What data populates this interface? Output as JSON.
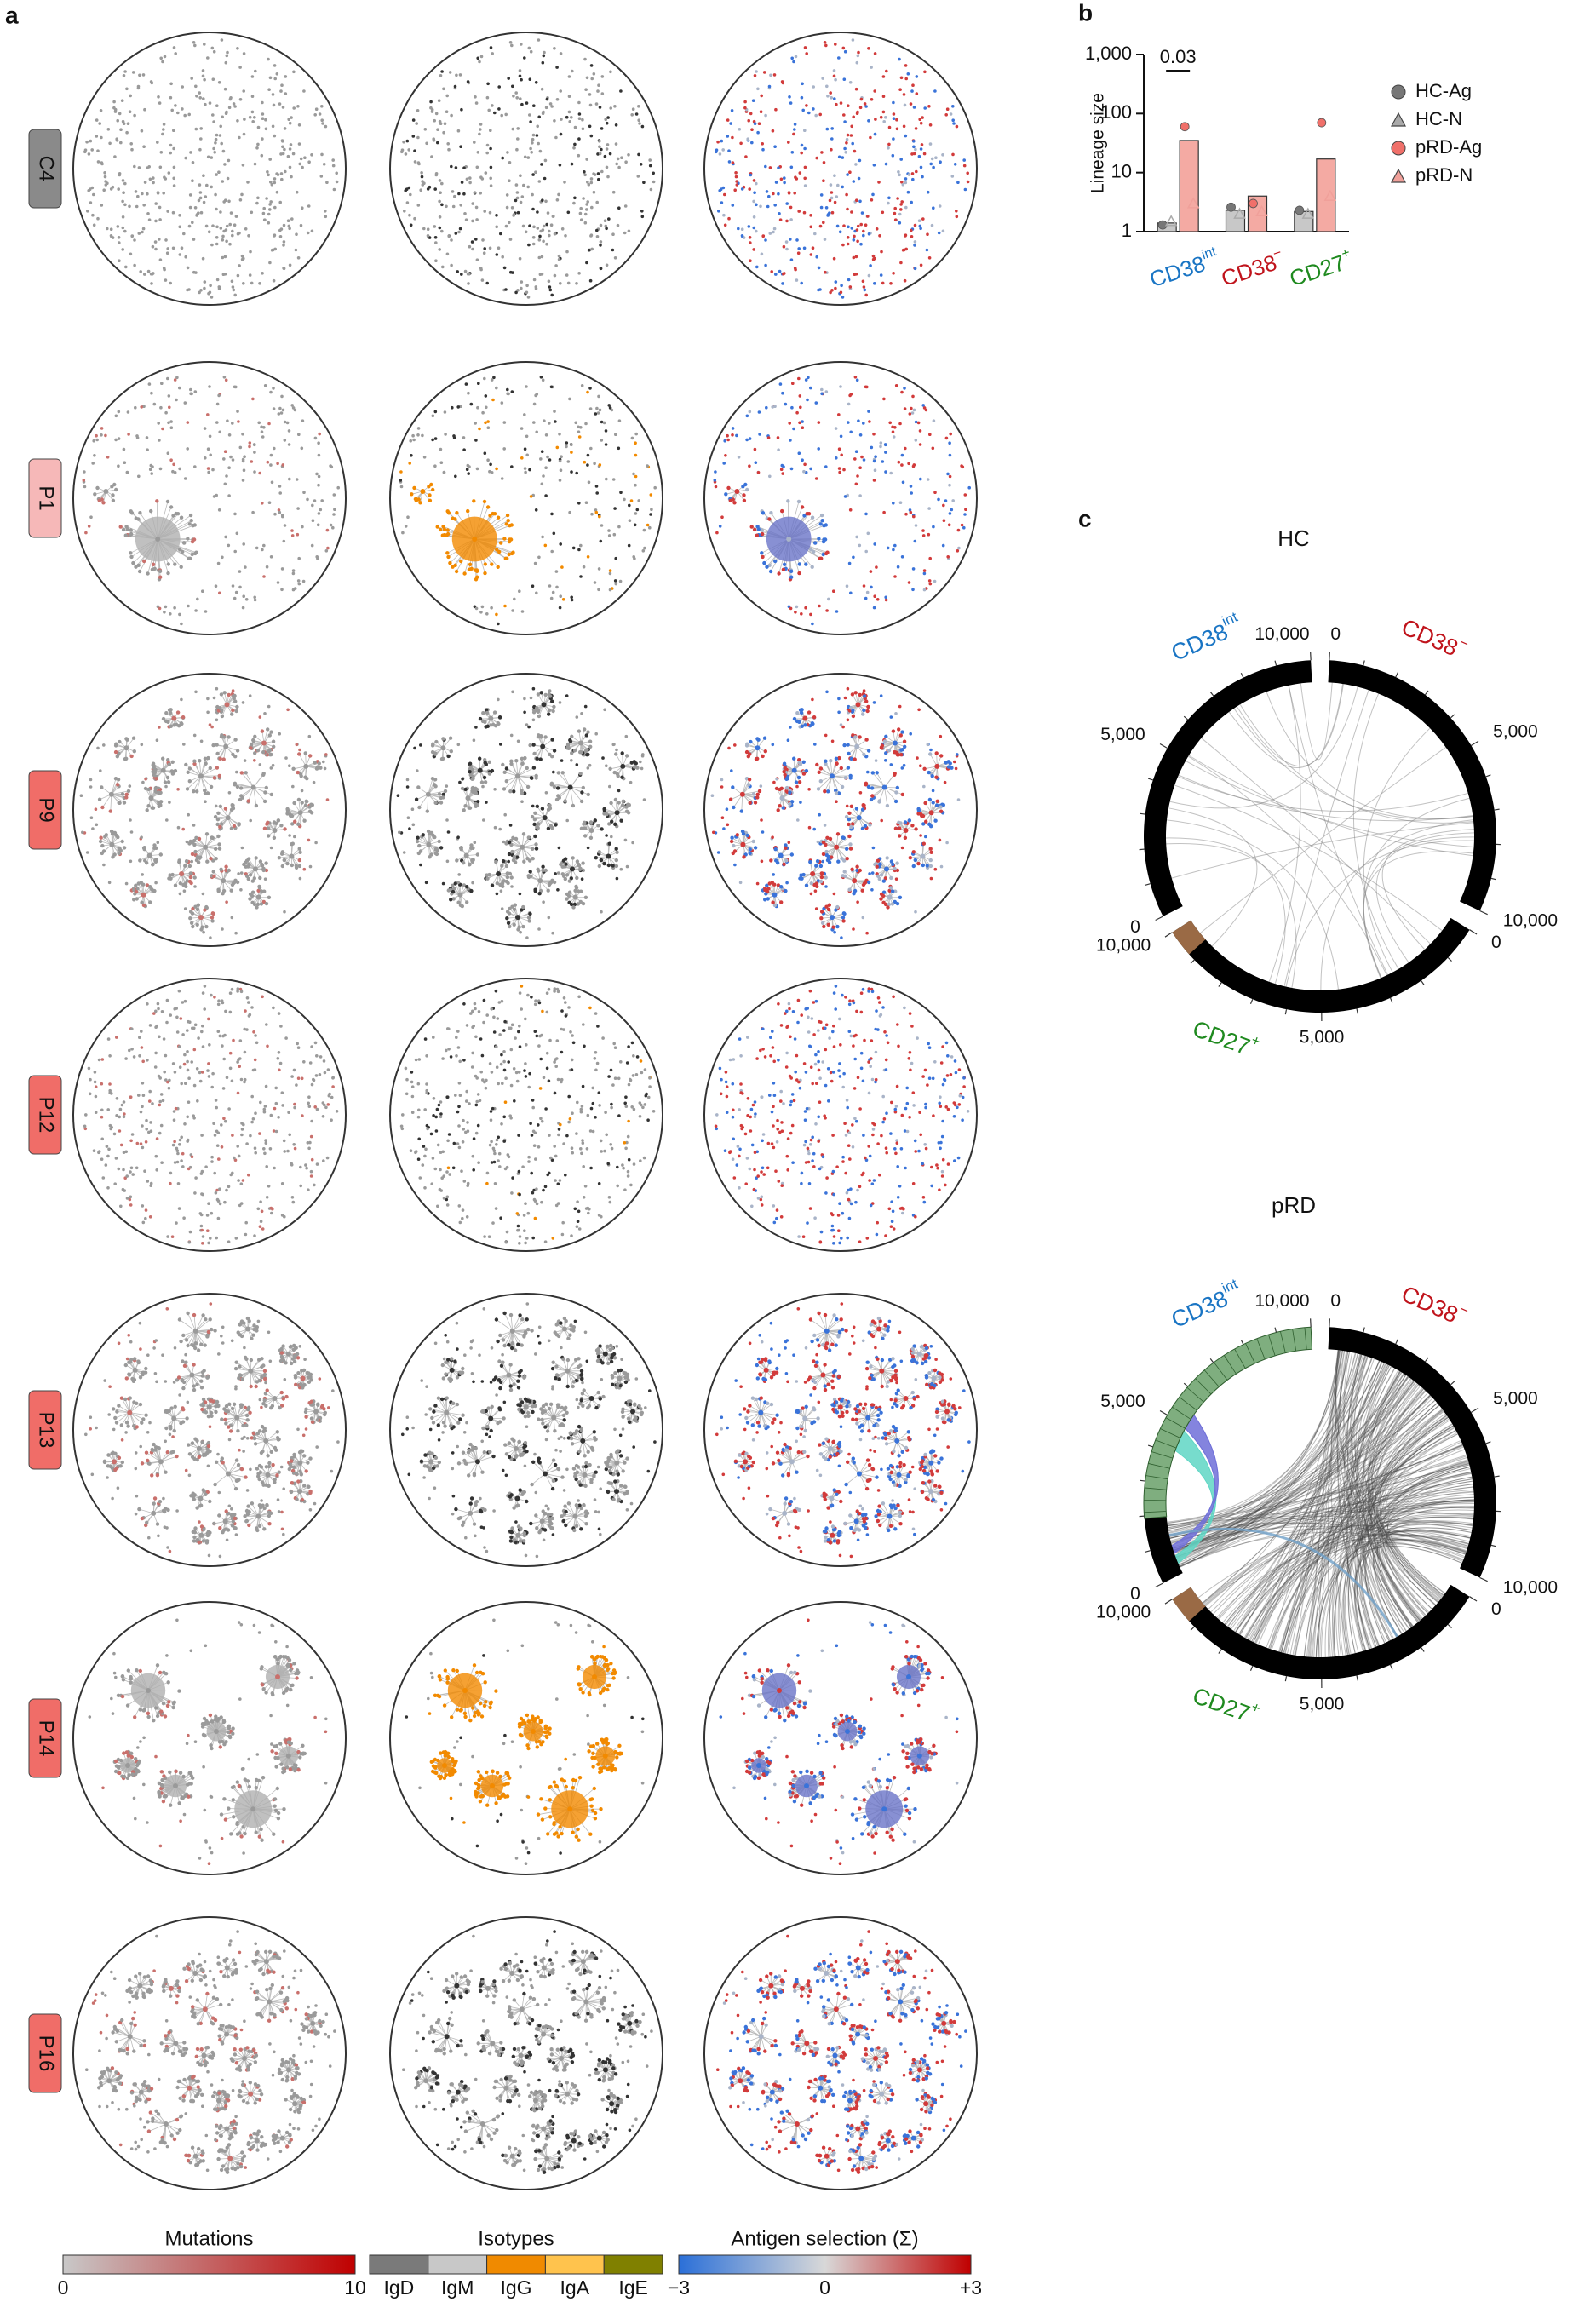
{
  "panel_a": {
    "label": "a",
    "rows": [
      "C4",
      "P1",
      "P9",
      "P12",
      "P13",
      "P14",
      "P16"
    ],
    "legends": [
      {
        "title": "Mutations",
        "ticks": [
          "0",
          "10"
        ]
      },
      {
        "title": "Isotypes",
        "ticks": [
          "IgD",
          "IgM",
          "IgG",
          "IgA",
          "IgE"
        ]
      },
      {
        "title": "Antigen selection (Σ)",
        "ticks": [
          "−3",
          "0",
          "+3"
        ]
      }
    ]
  },
  "chart_data": {
    "type": "bar",
    "panel_label": "b",
    "ylabel": "Lineage size",
    "log_scale": true,
    "ylim": [
      1,
      1000
    ],
    "yticks": [
      1,
      10,
      100,
      {
        "value": 1000,
        "label": "1,000"
      }
    ],
    "categories": [
      [
        "CD38",
        "int"
      ],
      [
        "CD38",
        "−"
      ],
      [
        "CD27",
        "+"
      ]
    ],
    "category_colors": [
      "#1a75c4",
      "#c0141c",
      "#1f8a1f"
    ],
    "bars": [
      {
        "color": "#c8c8c8",
        "values": [
          1.4,
          2.3,
          2.2
        ]
      },
      {
        "color": "#f4aaa3",
        "values": [
          35,
          4,
          17
        ]
      }
    ],
    "series": [
      {
        "name": "HC-Ag",
        "marker": "circle",
        "color": "#777777",
        "values": [
          1.3,
          2.6,
          2.3
        ]
      },
      {
        "name": "HC-N",
        "marker": "triangle",
        "color": "#aaaaaa",
        "values": [
          1.5,
          2.0,
          2.0
        ]
      },
      {
        "name": "pRD-Ag",
        "marker": "circle",
        "color": "#f0706a",
        "values": [
          60,
          3,
          70
        ]
      },
      {
        "name": "pRD-N",
        "marker": "triangle",
        "color": "#f0a09a",
        "values": [
          3,
          2.2,
          4
        ]
      }
    ],
    "annotation": "0.03",
    "legend": "right"
  },
  "panel_c": {
    "label": "c",
    "plots": [
      {
        "title": "HC",
        "segments": [
          {
            "name": [
              "CD38",
              "−"
            ],
            "color": "#c0141c",
            "tick_labels": [
              "0",
              "5,000",
              "10,000"
            ]
          },
          {
            "name": [
              "CD27",
              "+"
            ],
            "color": "#1f8a1f",
            "tick_labels": [
              "0",
              "5,000",
              "10,000"
            ]
          },
          {
            "name": [
              "CD38",
              "int"
            ],
            "color": "#1a75c4",
            "tick_labels": [
              "0",
              "5,000",
              "10,000"
            ]
          }
        ]
      },
      {
        "title": "pRD",
        "segments": [
          {
            "name": [
              "CD38",
              "−"
            ],
            "color": "#c0141c",
            "tick_labels": [
              "0",
              "5,000",
              "10,000"
            ]
          },
          {
            "name": [
              "CD27",
              "+"
            ],
            "color": "#1f8a1f",
            "tick_labels": [
              "0",
              "5,000",
              "10,000"
            ]
          },
          {
            "name": [
              "CD38",
              "int"
            ],
            "color": "#1a75c4",
            "tick_labels": [
              "0",
              "5,000",
              "10,000"
            ]
          }
        ]
      }
    ]
  }
}
